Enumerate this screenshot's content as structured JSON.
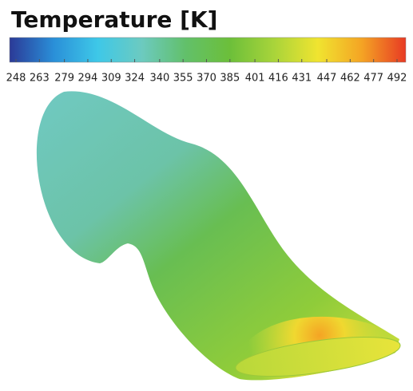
{
  "title": "Temperature [K]",
  "colorbar": {
    "lim": [
      248,
      492
    ],
    "ticks": [
      248,
      263,
      279,
      294,
      309,
      324,
      340,
      355,
      370,
      385,
      401,
      416,
      431,
      447,
      462,
      477,
      492
    ],
    "colormap": [
      "#2b3a97",
      "#2a8fd8",
      "#3ec8e8",
      "#6ccac0",
      "#62c06a",
      "#6cbf3a",
      "#a8d43a",
      "#f0e430",
      "#f4a424",
      "#e83a24"
    ]
  }
}
